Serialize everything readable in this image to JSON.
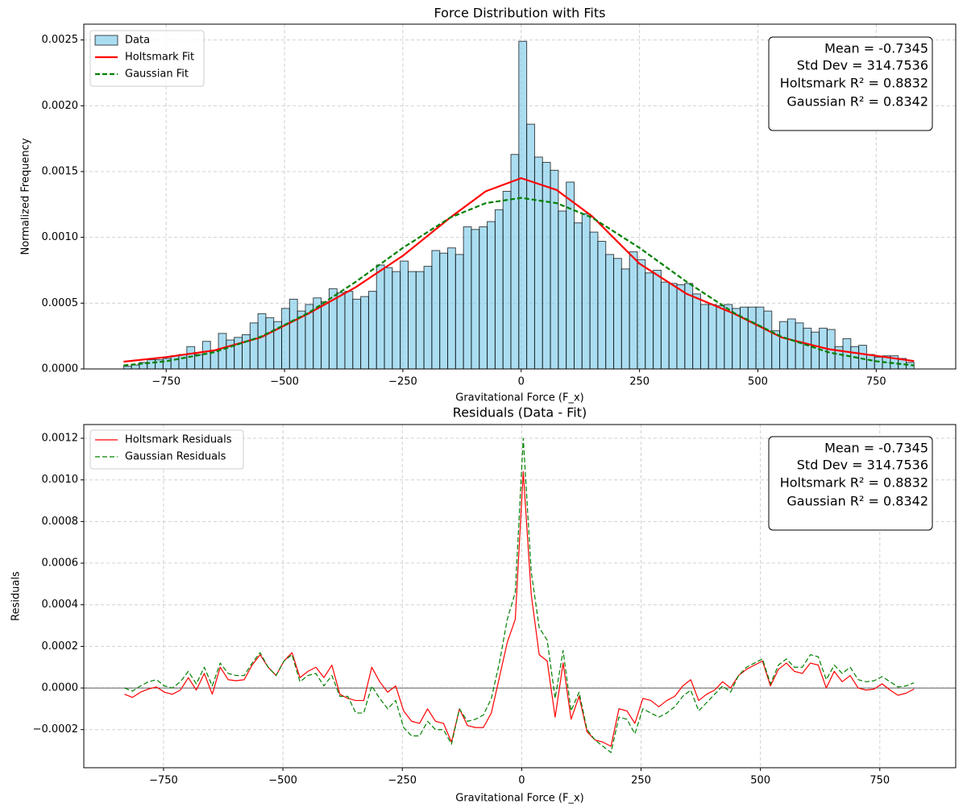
{
  "chart_data": [
    {
      "type": "histogram",
      "title": "Force Distribution with Fits",
      "xlabel": "Gravitational Force (F_x)",
      "ylabel": "Normalized Frequency",
      "name": "Data",
      "color": "#87ceeb",
      "edgecolor": "#000000",
      "grid": true,
      "legend": "upper left",
      "xlim": [
        -924,
        918
      ],
      "ylim": [
        0,
        0.00262
      ],
      "xticks": [
        {
          "value": -750,
          "label": "−750"
        },
        {
          "value": -500,
          "label": "−500"
        },
        {
          "value": -250,
          "label": "−250"
        },
        0,
        250,
        500,
        750
      ],
      "yticks": [
        {
          "value": 0,
          "label": "0.0000"
        },
        {
          "value": 0.0005,
          "label": "0.0005"
        },
        {
          "value": 0.001,
          "label": "0.0010"
        },
        {
          "value": 0.0015,
          "label": "0.0015"
        },
        {
          "value": 0.002,
          "label": "0.0020"
        },
        {
          "value": 0.0025,
          "label": "0.0025"
        }
      ],
      "bins": [
        -840,
        -823.3,
        -806.6,
        -789.9,
        -773.2,
        -756.5,
        -739.8,
        -723.1,
        -706.4,
        -689.7,
        -673,
        -656.3,
        -639.6,
        -622.9,
        -606.2,
        -589.5,
        -572.8,
        -556.1,
        -539.4,
        -522.7,
        -506,
        -489.3,
        -472.6,
        -455.9,
        -439.2,
        -422.5,
        -405.8,
        -389.1,
        -372.4,
        -355.7,
        -339,
        -322.3,
        -305.6,
        -288.9,
        -272.2,
        -255.5,
        -238.8,
        -222.1,
        -205.4,
        -188.7,
        -172,
        -155.3,
        -138.6,
        -121.9,
        -105.2,
        -88.5,
        -71.8,
        -55.1,
        -38.4,
        -21.7,
        -5,
        11.7,
        28.4,
        45.1,
        61.8,
        78.5,
        95.2,
        111.9,
        128.6,
        145.3,
        162,
        178.7,
        195.4,
        212.1,
        228.8,
        245.5,
        262.2,
        278.9,
        295.6,
        312.3,
        329,
        345.7,
        362.4,
        379.1,
        395.8,
        412.5,
        429.2,
        445.9,
        462.6,
        479.3,
        496,
        512.7,
        529.4,
        546.1,
        562.8,
        579.5,
        596.2,
        612.9,
        629.6,
        646.3,
        663,
        679.7,
        696.4,
        713.1,
        729.8,
        746.5,
        763.2,
        779.9,
        796.6,
        813.3,
        830
      ],
      "values": [
        2e-05,
        3e-05,
        5e-05,
        7e-05,
        7e-05,
        8e-05,
        0.0001,
        0.00011,
        0.00017,
        0.00011,
        0.00021,
        0.00014,
        0.00027,
        0.00022,
        0.00024,
        0.00026,
        0.00035,
        0.00042,
        0.00039,
        0.00036,
        0.00046,
        0.00053,
        0.00044,
        0.00049,
        0.00054,
        0.00051,
        0.00061,
        0.00058,
        0.00059,
        0.00053,
        0.00055,
        0.00059,
        0.00079,
        0.00077,
        0.00074,
        0.00082,
        0.00074,
        0.00074,
        0.00078,
        0.0009,
        0.00088,
        0.00092,
        0.00087,
        0.00108,
        0.00106,
        0.00108,
        0.00112,
        0.00121,
        0.00135,
        0.00163,
        0.00249,
        0.00186,
        0.00161,
        0.00157,
        0.00151,
        0.0012,
        0.00142,
        0.00111,
        0.00118,
        0.00104,
        0.00097,
        0.00087,
        0.00084,
        0.00076,
        0.00089,
        0.00083,
        0.00073,
        0.00075,
        0.00066,
        0.00065,
        0.00064,
        0.00065,
        0.00057,
        0.00049,
        0.00049,
        0.00048,
        0.00049,
        0.00046,
        0.00047,
        0.00047,
        0.00047,
        0.00044,
        0.00029,
        0.00036,
        0.00038,
        0.00035,
        0.00031,
        0.00028,
        0.00031,
        0.0003,
        0.00017,
        0.00023,
        0.00017,
        0.00018,
        0.00011,
        9e-05,
        0.0001,
        0.0001,
        8e-05,
        5e-05
      ],
      "series": [
        {
          "name": "Holtsmark Fit",
          "color": "#ff0000",
          "dashed": false,
          "width": 2.2,
          "x": [
            -840,
            -750,
            -650,
            -550,
            -450,
            -350,
            -250,
            -150,
            -75,
            0,
            75,
            150,
            250,
            350,
            450,
            550,
            650,
            750,
            830
          ],
          "values": [
            5.5e-05,
            9e-05,
            0.00014,
            0.00024,
            0.00042,
            0.00062,
            0.00086,
            0.00115,
            0.00135,
            0.00145,
            0.00136,
            0.00116,
            0.0008,
            0.00057,
            0.00042,
            0.00024,
            0.00015,
            0.0001,
            6e-05
          ]
        },
        {
          "name": "Gaussian Fit",
          "color": "#008000",
          "dashed": true,
          "width": 2.2,
          "x": [
            -840,
            -750,
            -650,
            -550,
            -450,
            -350,
            -250,
            -150,
            -75,
            0,
            75,
            150,
            250,
            350,
            450,
            550,
            650,
            750,
            830
          ],
          "values": [
            2.66e-05,
            5.84e-05,
            0.000126,
            0.000245,
            0.000425,
            0.000661,
            0.00092,
            0.00115,
            0.00126,
            0.0013,
            0.00126,
            0.00115,
            0.00092,
            0.000661,
            0.000425,
            0.000245,
            0.000126,
            5.84e-05,
            2.66e-05
          ]
        }
      ],
      "stats": [
        "Mean = -0.7345",
        "Std Dev = 314.7536",
        "Holtsmark R² = 0.8832",
        "Gaussian R² = 0.8342"
      ]
    },
    {
      "type": "line",
      "title": "Residuals (Data - Fit)",
      "xlabel": "Gravitational Force (F_x)",
      "ylabel": "Residuals",
      "grid": true,
      "legend": "upper left",
      "hline": 0,
      "xlim": [
        -917,
        909
      ],
      "ylim": [
        -0.000383,
        0.001266
      ],
      "xticks": [
        {
          "value": -750,
          "label": "−750"
        },
        {
          "value": -500,
          "label": "−500"
        },
        {
          "value": -250,
          "label": "−250"
        },
        0,
        250,
        500,
        750
      ],
      "yticks": [
        {
          "value": -0.0002,
          "label": "−0.0002"
        },
        {
          "value": 0,
          "label": "0.0000"
        },
        {
          "value": 0.0002,
          "label": "0.0002"
        },
        {
          "value": 0.0004,
          "label": "0.0004"
        },
        {
          "value": 0.0006,
          "label": "0.0006"
        },
        {
          "value": 0.0008,
          "label": "0.0008"
        },
        {
          "value": 0.001,
          "label": "0.0010"
        },
        {
          "value": 0.0012,
          "label": "0.0012"
        }
      ],
      "x": [
        -831.7,
        -815,
        -798.3,
        -781.6,
        -764.9,
        -748.2,
        -731.5,
        -714.8,
        -698.1,
        -681.4,
        -664.7,
        -648,
        -631.3,
        -614.6,
        -597.9,
        -581.2,
        -564.5,
        -547.8,
        -531.1,
        -514.4,
        -497.7,
        -481,
        -464.3,
        -447.6,
        -430.9,
        -414.2,
        -397.5,
        -380.8,
        -364.1,
        -347.4,
        -330.7,
        -314,
        -297.3,
        -280.6,
        -263.9,
        -247.2,
        -230.5,
        -213.8,
        -197.1,
        -180.4,
        -163.7,
        -147,
        -130.3,
        -113.6,
        -96.9,
        -80.2,
        -63.5,
        -46.8,
        -30.1,
        -13.4,
        3.3,
        20,
        36.7,
        53.4,
        70.1,
        86.8,
        103.5,
        120.2,
        136.9,
        153.6,
        170.3,
        187,
        203.7,
        220.4,
        237.1,
        253.8,
        270.5,
        287.2,
        303.9,
        320.6,
        337.3,
        354,
        370.7,
        387.4,
        404.1,
        420.8,
        437.5,
        454.2,
        470.9,
        487.6,
        504.3,
        521,
        537.7,
        554.4,
        571.1,
        587.8,
        604.5,
        621.2,
        637.9,
        654.6,
        671.3,
        688,
        704.7,
        721.4,
        738.1,
        754.8,
        771.5,
        788.2,
        804.9,
        821.6
      ],
      "series": [
        {
          "name": "Holtsmark Residuals",
          "color": "#ff0000",
          "dashed": false,
          "width": 1.2,
          "values": [
            -3e-05,
            -4.5e-05,
            -2e-05,
            -5e-06,
            5e-06,
            -2e-05,
            -3e-05,
            -1e-05,
            5e-05,
            -1e-05,
            7e-05,
            -3e-05,
            0.0001,
            4e-05,
            3.5e-05,
            4e-05,
            0.00011,
            0.00016,
            0.0001,
            6e-05,
            0.00013,
            0.00017,
            5e-05,
            8e-05,
            0.0001,
            5e-05,
            0.00011,
            -3e-05,
            -5e-05,
            -6e-05,
            -6e-05,
            0.0001,
            3e-05,
            -2e-05,
            1e-05,
            -0.00011,
            -0.00016,
            -0.00017,
            -0.0001,
            -0.00016,
            -0.00017,
            -0.00026,
            -0.0001,
            -0.00018,
            -0.00019,
            -0.00019,
            -0.00012,
            5e-05,
            0.00022,
            0.00033,
            0.00104,
            0.00045,
            0.00016,
            0.00013,
            -0.00014,
            0.00012,
            -0.00015,
            -4e-05,
            -0.00021,
            -0.00025,
            -0.00026,
            -0.00028,
            -0.0001,
            -0.00011,
            -0.00017,
            -5e-05,
            -6e-05,
            -9e-05,
            -6e-05,
            -4e-05,
            1e-05,
            4e-05,
            -6e-05,
            -3e-05,
            -1e-05,
            3e-05,
            0.0,
            6e-05,
            9e-05,
            0.00011,
            0.00013,
            1e-05,
            9e-05,
            0.00012,
            8e-05,
            7e-05,
            0.00012,
            0.00011,
            0.0,
            8e-05,
            3e-05,
            6e-05,
            0.0,
            -1e-05,
            -5e-06,
            2e-05,
            -1e-05,
            -3.5e-05,
            -2.5e-05,
            -5e-06
          ]
        },
        {
          "name": "Gaussian Residuals",
          "color": "#008000",
          "dashed": true,
          "width": 1.2,
          "values": [
            0.0,
            -1.5e-05,
            1e-05,
            3e-05,
            4e-05,
            1e-05,
            0.0,
            3e-05,
            8e-05,
            2e-05,
            0.0001,
            1e-05,
            0.00012,
            7e-05,
            6e-05,
            6e-05,
            0.00012,
            0.00017,
            0.0001,
            6e-05,
            0.00013,
            0.00016,
            3e-05,
            6e-05,
            7e-05,
            1e-05,
            6e-05,
            -4e-05,
            -4e-05,
            -0.00012,
            -0.00012,
            1e-05,
            -5e-05,
            -0.0001,
            -6e-05,
            -0.00019,
            -0.00023,
            -0.00023,
            -0.00016,
            -0.0002,
            -0.0002,
            -0.00027,
            -0.0001,
            -0.00016,
            -0.00015,
            -0.00013,
            -5e-05,
            0.00012,
            0.00033,
            0.00046,
            0.0012,
            0.00056,
            0.00029,
            0.00023,
            -5e-05,
            0.00018,
            -0.00011,
            -2e-05,
            -0.0002,
            -0.00025,
            -0.00028,
            -0.00031,
            -0.00014,
            -0.00015,
            -0.00022,
            -0.0001,
            -0.00012,
            -0.00014,
            -0.00012,
            -9e-05,
            -4e-05,
            -1e-05,
            -0.00011,
            -7e-05,
            -3e-05,
            1e-05,
            -2e-05,
            6e-05,
            0.0001,
            0.00012,
            0.00014,
            2e-05,
            0.00011,
            0.00014,
            0.0001,
            0.0001,
            0.00016,
            0.00015,
            4e-05,
            0.00011,
            7e-05,
            0.0001,
            4e-05,
            3e-05,
            3.5e-05,
            5.5e-05,
            3e-05,
            5e-06,
            1e-05,
            2.5e-05
          ]
        }
      ],
      "stats": [
        "Mean = -0.7345",
        "Std Dev = 314.7536",
        "Holtsmark R² = 0.8832",
        "Gaussian R² = 0.8342"
      ]
    }
  ]
}
